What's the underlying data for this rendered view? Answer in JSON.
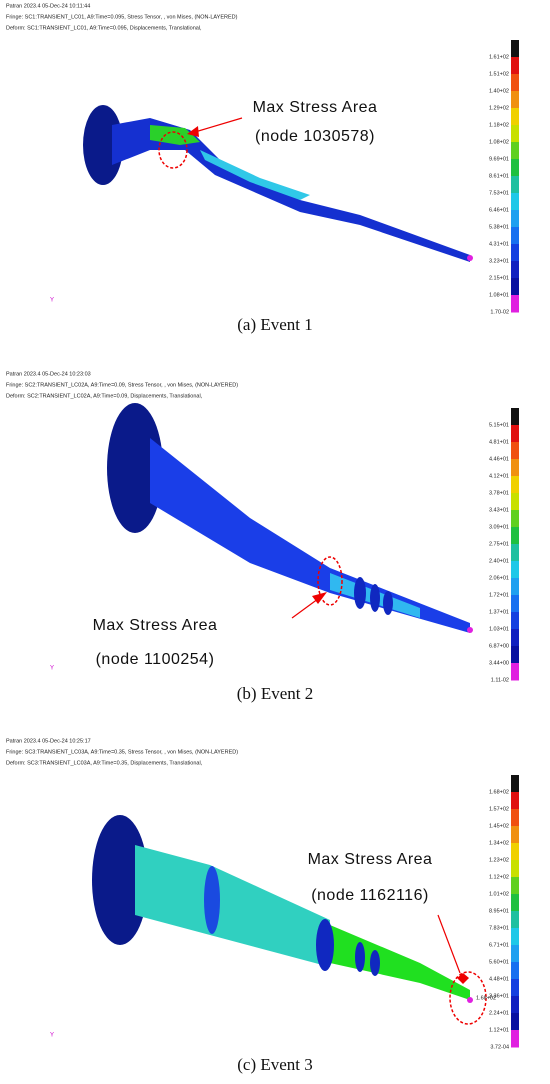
{
  "panels": [
    {
      "header": [
        "Patran 2023.4 05-Dec-24 10:11:44",
        "Fringe: SC1:TRANSIENT_LC01, A9:Time=0.095, Stress Tensor, , von Mises, (NON-LAYERED)",
        "Deform: SC1:TRANSIENT_LC01, A9:Time=0.095, Displacements, Translational,"
      ],
      "colorbar": [
        "1.61+02",
        "1.51+02",
        "1.40+02",
        "1.29+02",
        "1.18+02",
        "1.08+02",
        "9.69+01",
        "8.61+01",
        "7.53+01",
        "6.46+01",
        "5.38+01",
        "4.31+01",
        "3.23+01",
        "2.15+01",
        "1.08+01",
        "1.70-02"
      ],
      "annotation": [
        "Max Stress Area",
        "(node 1030578)"
      ],
      "axis_label": "Y",
      "caption": "(a)  Event  1"
    },
    {
      "header": [
        "Patran 2023.4 05-Dec-24 10:23:03",
        "Fringe: SC2:TRANSIENT_LC02A, A9:Time=0.09, Stress Tensor, , von Mises, (NON-LAYERED)",
        "Deform: SC2:TRANSIENT_LC02A, A9:Time=0.09, Displacements, Translational,"
      ],
      "colorbar": [
        "5.15+01",
        "4.81+01",
        "4.46+01",
        "4.12+01",
        "3.78+01",
        "3.43+01",
        "3.09+01",
        "2.75+01",
        "2.40+01",
        "2.06+01",
        "1.72+01",
        "1.37+01",
        "1.03+01",
        "6.87+00",
        "3.44+00",
        "1.11-02"
      ],
      "annotation": [
        "Max Stress Area",
        "(node 1100254)"
      ],
      "axis_label": "Y",
      "caption": "(b)  Event  2"
    },
    {
      "header": [
        "Patran 2023.4 05-Dec-24 10:25:17",
        "Fringe: SC3:TRANSIENT_LC03A, A9:Time=0.35, Stress Tensor, , von Mises, (NON-LAYERED)",
        "Deform: SC3:TRANSIENT_LC03A, A9:Time=0.35, Displacements, Translational,"
      ],
      "colorbar": [
        "1.68+02",
        "1.57+02",
        "1.45+02",
        "1.34+02",
        "1.23+02",
        "1.12+02",
        "1.01+02",
        "8.95+01",
        "7.83+01",
        "6.71+01",
        "5.60+01",
        "4.48+01",
        "3.36+01",
        "2.24+01",
        "1.12+01",
        "3.72-04"
      ],
      "annotation": [
        "Max Stress Area",
        "(node 1162116)"
      ],
      "axis_label": "Y",
      "caption": "(c)  Event  3",
      "node_tag": "1.68+02"
    }
  ]
}
